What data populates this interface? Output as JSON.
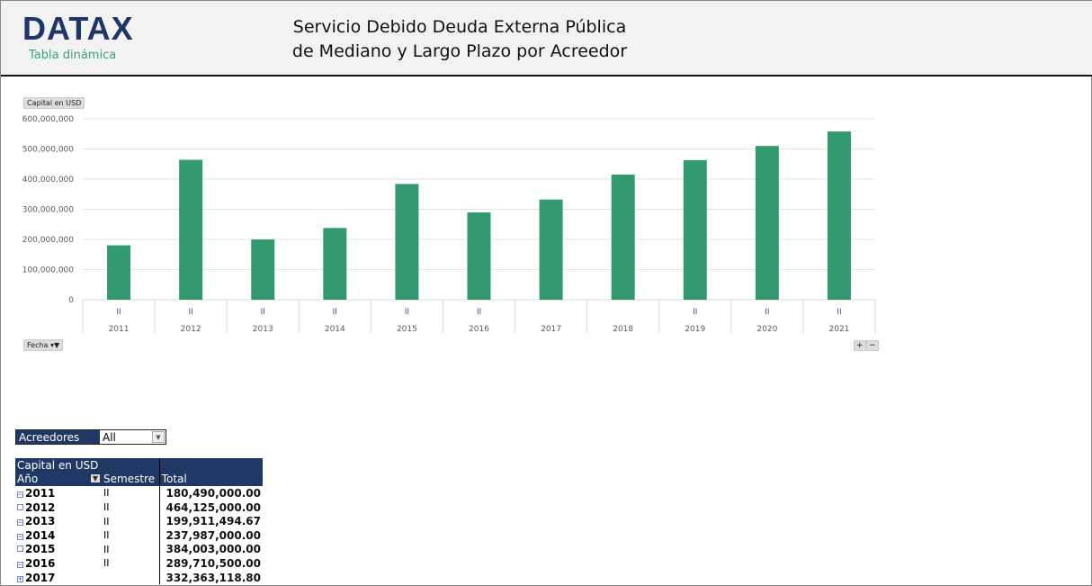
{
  "header": {
    "logo": "DATAX",
    "subtitle": "Tabla dinámica",
    "title_line1": "Servicio Debido Deuda Externa Pública",
    "title_line2": "de Mediano y Largo Plazo por Acreedor"
  },
  "chart_buttons": {
    "value_field": "Capital en USD",
    "axis_field": "Fecha",
    "zoom_in": "+",
    "zoom_out": "−"
  },
  "chart_data": {
    "type": "bar",
    "categories": [
      "2011",
      "2012",
      "2013",
      "2014",
      "2015",
      "2016",
      "2017",
      "2018",
      "2019",
      "2020",
      "2021"
    ],
    "subcategories": [
      "II",
      "II",
      "II",
      "II",
      "II",
      "II",
      "",
      "",
      "II",
      "II",
      "II"
    ],
    "values": [
      180490000,
      464125000,
      199911494.67,
      237987000,
      384003000,
      289710500,
      332363118.8,
      415000000,
      463000000,
      510000000,
      558000000
    ],
    "ylim": [
      0,
      600000000
    ],
    "yticks": [
      "0",
      "100,000,000",
      "200,000,000",
      "300,000,000",
      "400,000,000",
      "500,000,000",
      "600,000,000"
    ],
    "grid": true,
    "bar_color": "#329a6e",
    "legend": "none"
  },
  "filter": {
    "label": "Acreedores",
    "value": "All"
  },
  "pivot": {
    "header_title": "Capital en USD",
    "col_year": "Año",
    "col_semester": "Semestre",
    "col_total": "Total",
    "rows": [
      {
        "year": "2011",
        "sem": "II",
        "total": "180,490,000.00",
        "exp": "−"
      },
      {
        "year": "2012",
        "sem": "II",
        "total": "464,125,000.00",
        "exp": ""
      },
      {
        "year": "2013",
        "sem": "II",
        "total": "199,911,494.67",
        "exp": "−"
      },
      {
        "year": "2014",
        "sem": "II",
        "total": "237,987,000.00",
        "exp": "−"
      },
      {
        "year": "2015",
        "sem": "II",
        "total": "384,003,000.00",
        "exp": ""
      },
      {
        "year": "2016",
        "sem": "II",
        "total": "289,710,500.00",
        "exp": "−"
      },
      {
        "year": "2017",
        "sem": "",
        "total": "332,363,118.80",
        "exp": "+"
      }
    ]
  }
}
